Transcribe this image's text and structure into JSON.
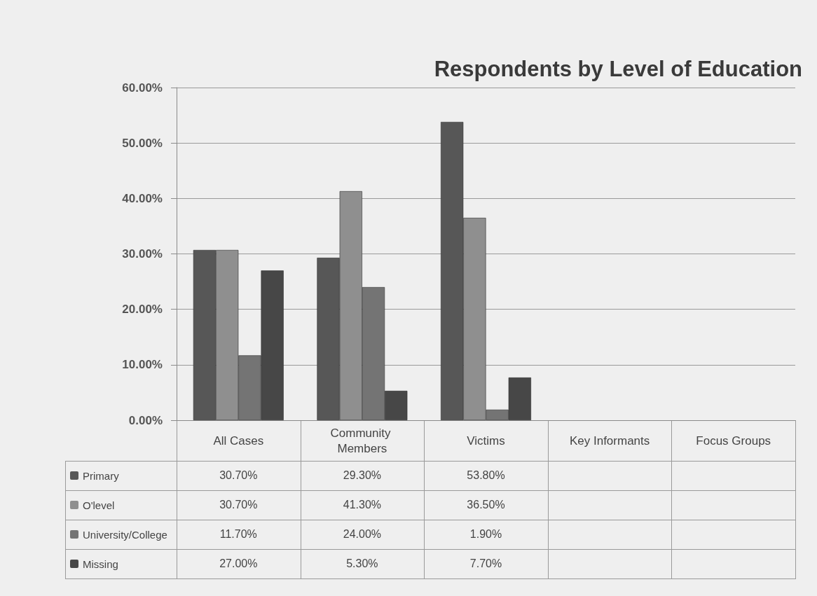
{
  "chart_data": {
    "type": "bar",
    "title": "Respondents by Level of Education",
    "categories": [
      "All Cases",
      "Community Members",
      "Victims",
      "Key Informants",
      "Focus Groups"
    ],
    "series": [
      {
        "name": "Primary",
        "color": "#575757",
        "values": [
          30.7,
          29.3,
          53.8,
          null,
          null
        ],
        "value_labels": [
          "30.70%",
          "29.30%",
          "53.80%",
          null,
          null
        ]
      },
      {
        "name": "O'level",
        "color": "#8f8f8f",
        "values": [
          30.7,
          41.3,
          36.5,
          null,
          null
        ],
        "value_labels": [
          "30.70%",
          "41.30%",
          "36.50%",
          null,
          null
        ]
      },
      {
        "name": "University/College",
        "color": "#747474",
        "values": [
          11.7,
          24.0,
          1.9,
          null,
          null
        ],
        "value_labels": [
          "11.70%",
          "24.00%",
          "1.90%",
          null,
          null
        ]
      },
      {
        "name": "Missing",
        "color": "#474747",
        "values": [
          27.0,
          5.3,
          7.7,
          null,
          null
        ],
        "value_labels": [
          "27.00%",
          "5.30%",
          "7.70%",
          null,
          null
        ]
      }
    ],
    "ylim": [
      0,
      60
    ],
    "yticks": [
      {
        "value": 0,
        "label": "0.00%"
      },
      {
        "value": 10,
        "label": "10.00%"
      },
      {
        "value": 20,
        "label": "20.00%"
      },
      {
        "value": 30,
        "label": "30.00%"
      },
      {
        "value": 40,
        "label": "40.00%"
      },
      {
        "value": 50,
        "label": "50.00%"
      },
      {
        "value": 60,
        "label": "60.00%"
      }
    ],
    "grid": "y",
    "legend": "bottom left"
  }
}
